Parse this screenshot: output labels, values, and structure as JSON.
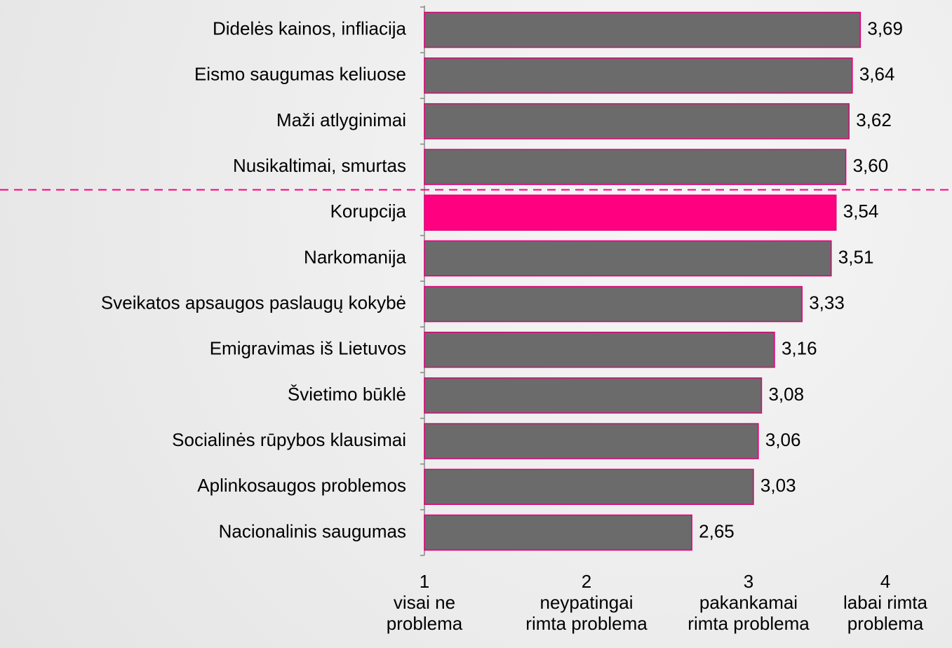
{
  "chart_data": {
    "type": "barh",
    "categories": [
      "Didelės kainos, infliacija",
      "Eismo saugumas keliuose",
      "Maži atlyginimai",
      "Nusikaltimai, smurtas",
      "Korupcija",
      "Narkomanija",
      "Sveikatos apsaugos paslaugų kokybė",
      "Emigravimas iš Lietuvos",
      "Švietimo būklė",
      "Socialinės rūpybos klausimai",
      "Aplinkosaugos problemos",
      "Nacionalinis saugumas"
    ],
    "values": [
      3.69,
      3.64,
      3.62,
      3.6,
      3.54,
      3.51,
      3.33,
      3.16,
      3.08,
      3.06,
      3.03,
      2.65
    ],
    "value_labels": [
      "3,69",
      "3,64",
      "3,62",
      "3,60",
      "3,54",
      "3,51",
      "3,33",
      "3,16",
      "3,08",
      "3,06",
      "3,03",
      "2,65"
    ],
    "colors": [
      "#6b6b6b",
      "#6b6b6b",
      "#6b6b6b",
      "#6b6b6b",
      "#ff0080",
      "#6b6b6b",
      "#6b6b6b",
      "#6b6b6b",
      "#6b6b6b",
      "#6b6b6b",
      "#6b6b6b",
      "#6b6b6b"
    ],
    "xlim": [
      1,
      4
    ],
    "xticks": [
      {
        "value": 1,
        "label": "1\nvisai ne\nproblema"
      },
      {
        "value": 2,
        "label": "2\nneypatingai\nrimta problema"
      },
      {
        "value": 3,
        "label": "3\npakankamai\nrimta problema"
      },
      {
        "value": 4,
        "label": "4\nlabai rimta\nproblema"
      }
    ]
  }
}
